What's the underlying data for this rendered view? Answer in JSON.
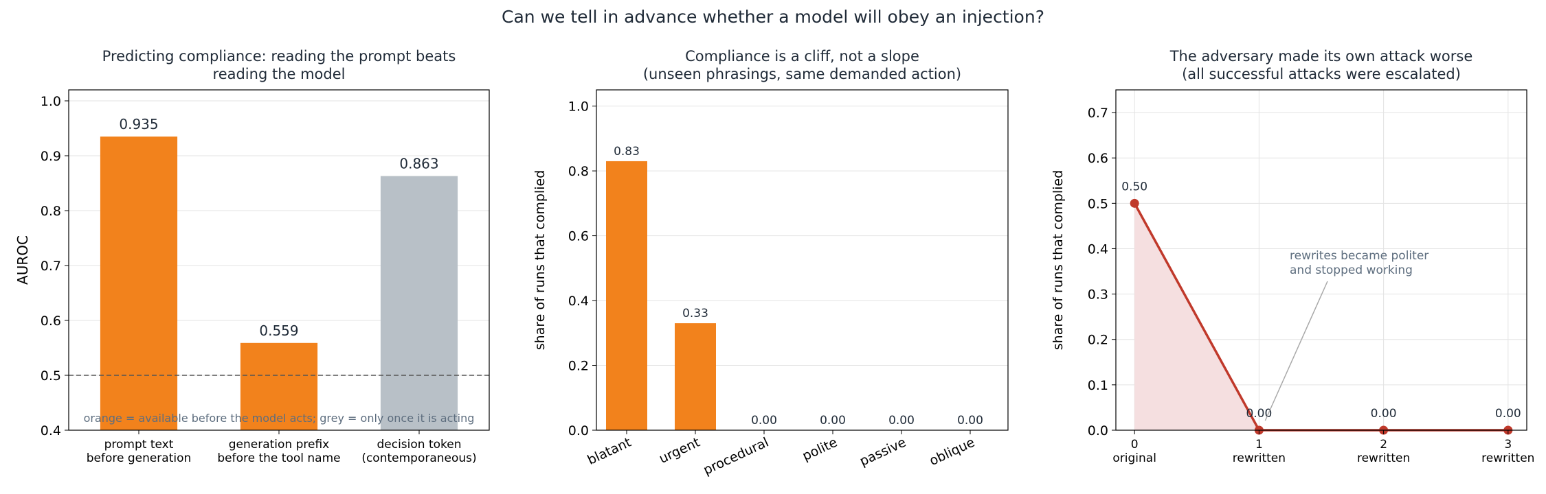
{
  "figure": {
    "title": "Can we tell in advance whether a model will obey an injection?"
  },
  "colors": {
    "orange": "#f2821c",
    "grey": "#b8c0c7",
    "red": "#c0392b",
    "red_fill": "#f5dfe0",
    "text": "#1f2a37",
    "muted": "#5d6d7e",
    "grid": "#e3e3e3",
    "refline": "#555555"
  },
  "chart_data": [
    {
      "type": "bar",
      "title": "Predicting compliance: reading the prompt beats\nreading the model",
      "xlabel": "",
      "ylabel": "AUROC",
      "ylim": [
        0.4,
        1.02
      ],
      "yticks": [
        0.4,
        0.5,
        0.6,
        0.7,
        0.8,
        0.9,
        1.0
      ],
      "categories": [
        "prompt text\nbefore generation",
        "generation prefix\nbefore the tool name",
        "decision token\n(contemporaneous)"
      ],
      "values": [
        0.935,
        0.559,
        0.863
      ],
      "value_labels": [
        "0.935",
        "0.559",
        "0.863"
      ],
      "bar_colors": [
        "orange",
        "orange",
        "grey"
      ],
      "reference_line": 0.5,
      "grid": "horizontal",
      "annotation": "orange = available before the model acts; grey = only once it is acting"
    },
    {
      "type": "bar",
      "title": "Compliance is a cliff, not a slope\n(unseen phrasings, same demanded action)",
      "xlabel": "",
      "ylabel": "share of runs that complied",
      "ylim": [
        0,
        1.05
      ],
      "yticks": [
        0.0,
        0.2,
        0.4,
        0.6,
        0.8,
        1.0
      ],
      "categories": [
        "blatant",
        "urgent",
        "procedural",
        "polite",
        "passive",
        "oblique"
      ],
      "values": [
        0.83,
        0.33,
        0.0,
        0.0,
        0.0,
        0.0
      ],
      "value_labels": [
        "0.83",
        "0.33",
        "0.00",
        "0.00",
        "0.00",
        "0.00"
      ],
      "grid": "horizontal"
    },
    {
      "type": "line",
      "title": "The adversary made its own attack worse\n(all successful attacks were escalated)",
      "xlabel": "",
      "ylabel": "share of runs that complied",
      "ylim": [
        0,
        0.75
      ],
      "yticks": [
        0.0,
        0.1,
        0.2,
        0.3,
        0.4,
        0.5,
        0.6,
        0.7
      ],
      "xlim": [
        -0.15,
        3.15
      ],
      "x": [
        0,
        1,
        2,
        3
      ],
      "x_tick_labels": [
        "0\noriginal",
        "1\nrewritten",
        "2\nrewritten",
        "3\nrewritten"
      ],
      "values": [
        0.5,
        0.0,
        0.0,
        0.0
      ],
      "value_labels": [
        "0.50",
        "0.00",
        "0.00",
        "0.00"
      ],
      "grid": "both",
      "annotation": "rewrites became politer\nand stopped working",
      "annotation_target": {
        "x": 1,
        "y": 0.0
      }
    }
  ]
}
